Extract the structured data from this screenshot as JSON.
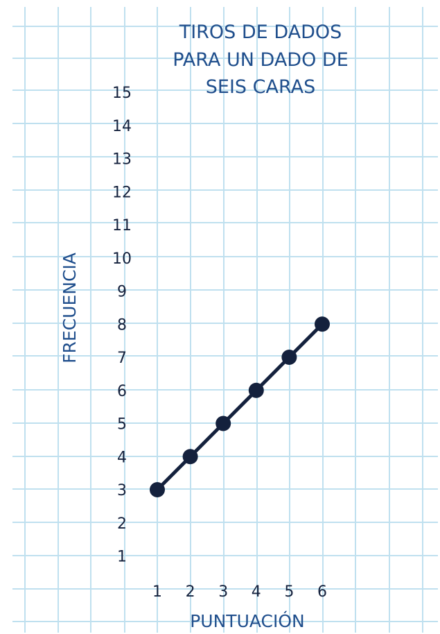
{
  "chart_data": {
    "type": "line",
    "title": "TIROS DE DADOS PARA UN DADO DE SEIS CARAS",
    "title_lines": [
      "TIROS DE DADOS",
      "PARA UN DADO DE",
      "SEIS CARAS"
    ],
    "xlabel": "PUNTUACIÓN",
    "ylabel": "FRECUENCIA",
    "x": [
      1,
      2,
      3,
      4,
      5,
      6
    ],
    "x_ticks": [
      "1",
      "2",
      "3",
      "4",
      "5",
      "6"
    ],
    "y_ticks": [
      "1",
      "2",
      "3",
      "4",
      "5",
      "6",
      "7",
      "8",
      "9",
      "10",
      "11",
      "12",
      "13",
      "14",
      "15"
    ],
    "series": [
      {
        "values": [
          3,
          4,
          5,
          6,
          7,
          8
        ]
      }
    ],
    "xlim": [
      0,
      7
    ],
    "ylim": [
      0,
      15
    ],
    "grid": true,
    "colors": {
      "grid": "#bfe0ef",
      "text": "#1f4e8c",
      "series": "#14213d"
    }
  }
}
